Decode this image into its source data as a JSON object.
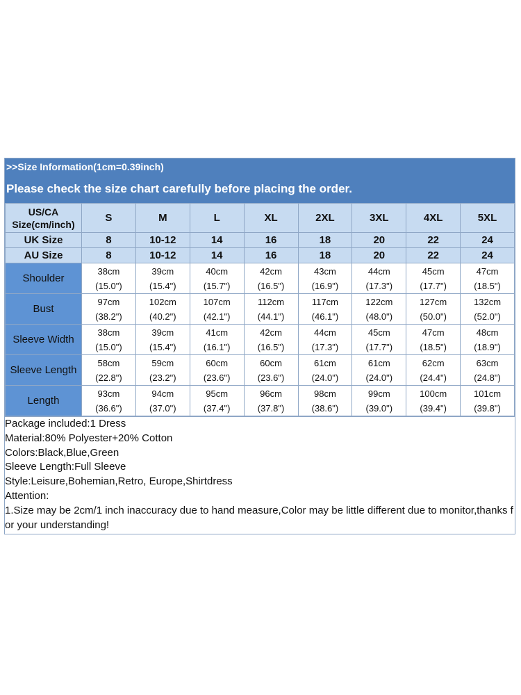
{
  "banner": {
    "line1": ">>Size Information(1cm=0.39inch)",
    "line2": "Please check the size chart carefully before placing the order."
  },
  "header": {
    "label_line1": "US/CA",
    "label_line2": "Size(cm/inch)",
    "sizes": [
      "S",
      "M",
      "L",
      "XL",
      "2XL",
      "3XL",
      "4XL",
      "5XL"
    ],
    "uk_label": "UK Size",
    "uk": [
      "8",
      "10-12",
      "14",
      "16",
      "18",
      "20",
      "22",
      "24"
    ],
    "au_label": "AU  Size",
    "au": [
      "8",
      "10-12",
      "14",
      "16",
      "18",
      "20",
      "22",
      "24"
    ]
  },
  "rows": [
    {
      "label": "Shoulder",
      "cm": [
        "38cm",
        "39cm",
        "40cm",
        "42cm",
        "43cm",
        "44cm",
        "45cm",
        "47cm"
      ],
      "inch": [
        "(15.0\")",
        "(15.4\")",
        "(15.7\")",
        "(16.5\")",
        "(16.9\")",
        "(17.3\")",
        "(17.7\")",
        "(18.5\")"
      ]
    },
    {
      "label": "Bust",
      "cm": [
        "97cm",
        "102cm",
        "107cm",
        "112cm",
        "117cm",
        "122cm",
        "127cm",
        "132cm"
      ],
      "inch": [
        "(38.2\")",
        "(40.2\")",
        "(42.1\")",
        "(44.1\")",
        "(46.1\")",
        "(48.0\")",
        "(50.0\")",
        "(52.0\")"
      ]
    },
    {
      "label": "Sleeve Width",
      "cm": [
        "38cm",
        "39cm",
        "41cm",
        "42cm",
        "44cm",
        "45cm",
        "47cm",
        "48cm"
      ],
      "inch": [
        "(15.0\")",
        "(15.4\")",
        "(16.1\")",
        "(16.5\")",
        "(17.3\")",
        "(17.7\")",
        "(18.5\")",
        "(18.9\")"
      ]
    },
    {
      "label": "Sleeve Length",
      "cm": [
        "58cm",
        "59cm",
        "60cm",
        "60cm",
        "61cm",
        "61cm",
        "62cm",
        "63cm"
      ],
      "inch": [
        "(22.8\")",
        "(23.2\")",
        "(23.6\")",
        "(23.6\")",
        "(24.0\")",
        "(24.0\")",
        "(24.4\")",
        "(24.8\")"
      ]
    },
    {
      "label": "Length",
      "cm": [
        "93cm",
        "94cm",
        "95cm",
        "96cm",
        "98cm",
        "99cm",
        "100cm",
        "101cm"
      ],
      "inch": [
        "(36.6\")",
        "(37.0\")",
        "(37.4\")",
        "(37.8\")",
        "(38.6\")",
        "(39.0\")",
        "(39.4\")",
        "(39.8\")"
      ]
    }
  ],
  "notes": [
    "Package included:1 Dress",
    "Material:80% Polyester+20% Cotton",
    "Colors:Black,Blue,Green",
    "Sleeve Length:Full Sleeve",
    "Style:Leisure,Bohemian,Retro, Europe,Shirtdress",
    "Attention:",
    "1.Size may be 2cm/1 inch inaccuracy due to hand measure,Color may be little different due to monitor,thanks for your understanding!"
  ],
  "colors": {
    "banner": "#4f80bd",
    "header_cell": "#c7dbf1",
    "row_label": "#5e93d4",
    "border": "#8fa7c6"
  }
}
